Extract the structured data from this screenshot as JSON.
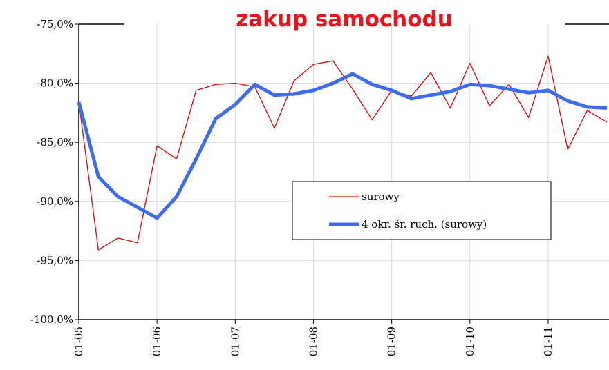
{
  "chart_data": {
    "type": "line",
    "title": "zakup samochodu",
    "categories": [
      "01-05",
      null,
      null,
      null,
      "01-06",
      null,
      null,
      null,
      "01-07",
      null,
      null,
      null,
      "01-08",
      null,
      null,
      null,
      "01-09",
      null,
      null,
      null,
      "01-10",
      null,
      null,
      null,
      "01-11",
      null,
      null,
      null
    ],
    "series": [
      {
        "name": "surowy",
        "color": "#e00000",
        "width": 1.3,
        "values": [
          -81.6,
          -94.1,
          -93.1,
          -93.5,
          -85.3,
          -86.4,
          -80.6,
          -80.1,
          -80.0,
          -80.3,
          -83.8,
          -79.8,
          -78.4,
          -78.1,
          -80.5,
          -83.1,
          -80.6,
          -81.1,
          -79.1,
          -82.1,
          -78.3,
          -81.9,
          -80.1,
          -82.9,
          -77.7,
          -85.6,
          -82.3,
          -83.3
        ]
      },
      {
        "name": "4 okr. śr. ruch. (surowy)",
        "color": "#3d6cf0",
        "width": 5,
        "values": [
          -81.6,
          -87.9,
          -89.6,
          -90.5,
          -91.4,
          -89.6,
          -86.4,
          -83.0,
          -81.8,
          -80.1,
          -81.0,
          -80.9,
          -80.6,
          -80.0,
          -79.2,
          -80.1,
          -80.6,
          -81.3,
          -81.0,
          -80.7,
          -80.1,
          -80.2,
          -80.5,
          -80.8,
          -80.6,
          -81.5,
          -82.0,
          -82.1
        ]
      }
    ],
    "ylim": [
      -100,
      -75
    ],
    "yticks": [
      {
        "value": -100,
        "label": "-100,0%"
      },
      {
        "value": -95,
        "label": "-95,0%"
      },
      {
        "value": -90,
        "label": "-90,0%"
      },
      {
        "value": -85,
        "label": "-85,0%"
      },
      {
        "value": -80,
        "label": "-80,0%"
      },
      {
        "value": -75,
        "label": "-75,0%"
      }
    ],
    "grid": true,
    "legend": "center-right"
  }
}
